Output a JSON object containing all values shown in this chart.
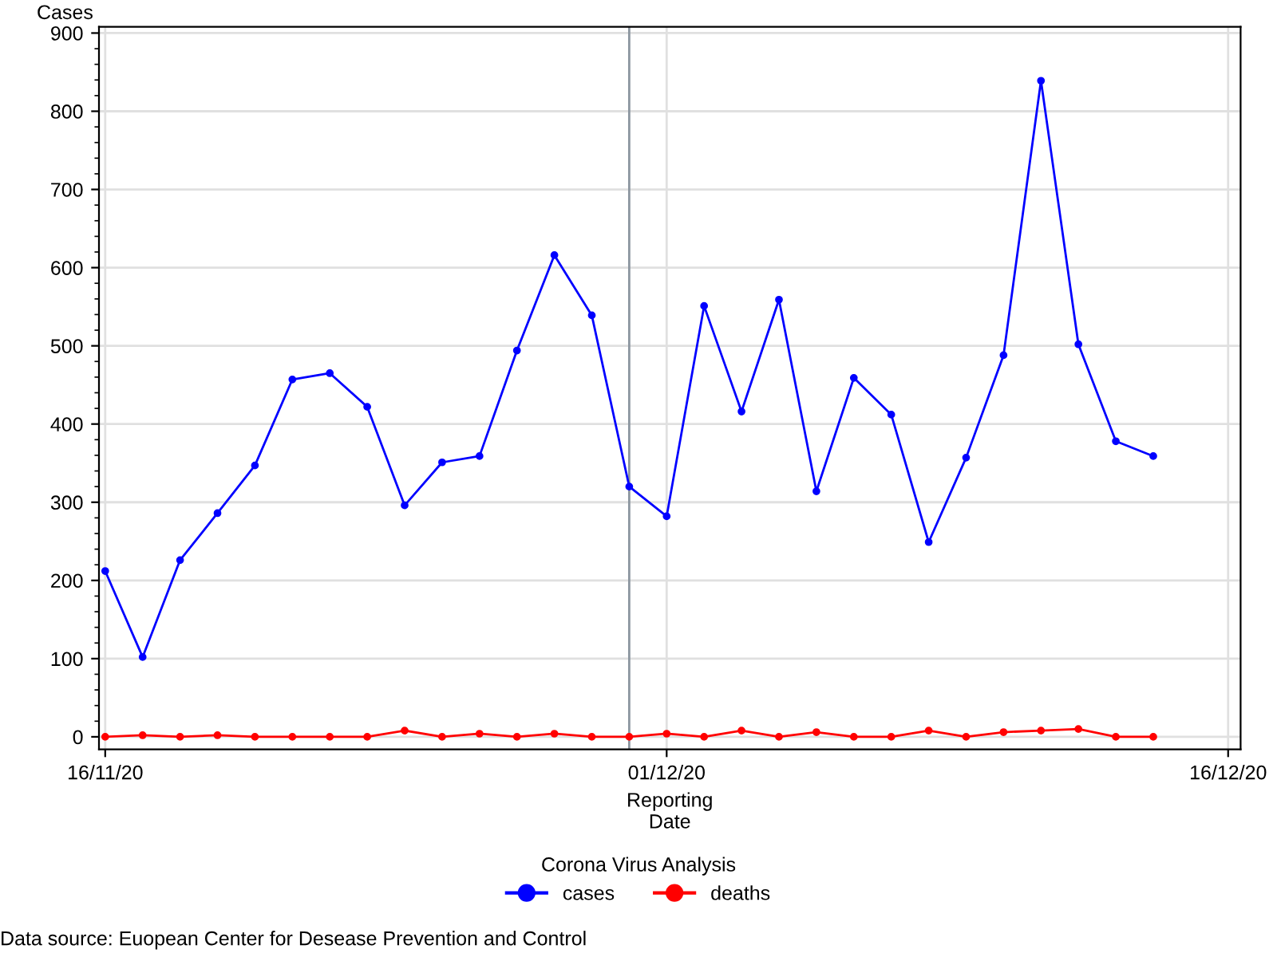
{
  "chart_data": {
    "type": "line",
    "ylabel": "Cases",
    "xlabel": "Reporting\nDate",
    "legend_title": "Corona Virus Analysis",
    "legend": "bottom",
    "grid": true,
    "marker": "circle",
    "line_style": "solid",
    "x": [
      "2020-11-16",
      "2020-11-17",
      "2020-11-18",
      "2020-11-19",
      "2020-11-20",
      "2020-11-21",
      "2020-11-22",
      "2020-11-23",
      "2020-11-24",
      "2020-11-25",
      "2020-11-26",
      "2020-11-27",
      "2020-11-28",
      "2020-11-29",
      "2020-11-30",
      "2020-12-01",
      "2020-12-02",
      "2020-12-03",
      "2020-12-04",
      "2020-12-05",
      "2020-12-06",
      "2020-12-07",
      "2020-12-08",
      "2020-12-09",
      "2020-12-10",
      "2020-12-11",
      "2020-12-12",
      "2020-12-13",
      "2020-12-14"
    ],
    "series": [
      {
        "name": "cases",
        "color": "#0000ff",
        "values": [
          212,
          102,
          226,
          286,
          347,
          457,
          465,
          422,
          296,
          351,
          359,
          494,
          616,
          539,
          320,
          282,
          551,
          416,
          559,
          314,
          459,
          412,
          249,
          357,
          488,
          839,
          502,
          378,
          359
        ]
      },
      {
        "name": "deaths",
        "color": "#ff0000",
        "values": [
          0,
          2,
          0,
          2,
          0,
          0,
          0,
          0,
          8,
          0,
          4,
          0,
          4,
          0,
          0,
          4,
          0,
          8,
          0,
          6,
          0,
          0,
          8,
          0,
          6,
          8,
          10,
          0,
          0
        ]
      }
    ],
    "xlim": [
      "2020-11-15T20:00",
      "2020-12-16T08:00"
    ],
    "xticks": [
      {
        "value": "2020-11-16",
        "label": "16/11/20"
      },
      {
        "value": "2020-12-01",
        "label": "01/12/20"
      },
      {
        "value": "2020-12-16",
        "label": "16/12/20"
      }
    ],
    "ylim": [
      -16,
      908
    ],
    "yticks": [
      0,
      100,
      200,
      300,
      400,
      500,
      600,
      700,
      800,
      900
    ],
    "ref_lines": [
      {
        "axis": "x",
        "value": "2020-11-30",
        "label": null,
        "color": "#8c96a0"
      }
    ],
    "annotations": [
      "Data source: Euopean Center for Desease Prevention and Control"
    ]
  }
}
